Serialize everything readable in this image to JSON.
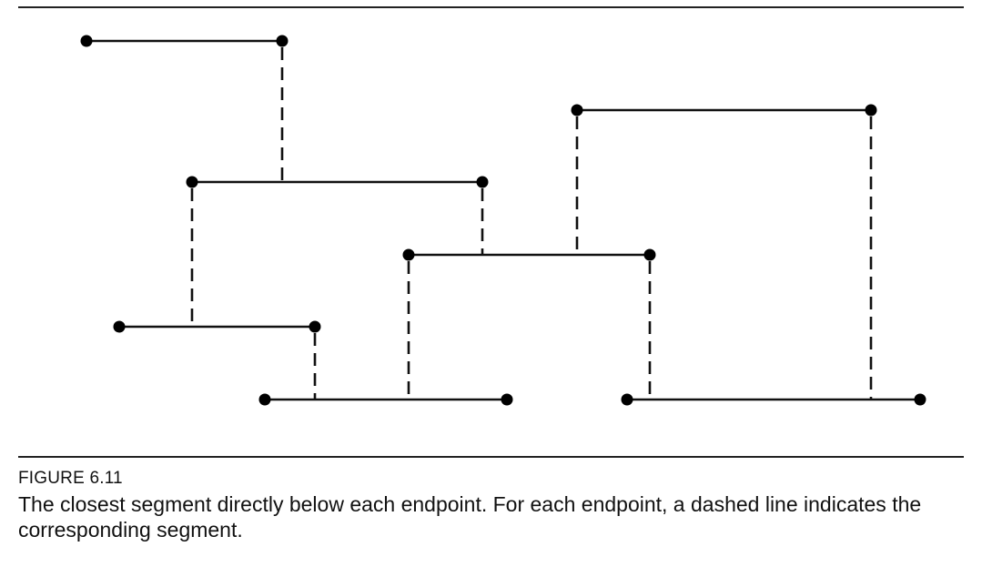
{
  "figure": {
    "label": "FIGURE 6.11",
    "caption": "The closest segment directly below each endpoint. For each endpoint, a dashed line indicates the corresponding segment."
  },
  "diagram": {
    "segments": [
      {
        "id": "s1"
      },
      {
        "id": "s2"
      },
      {
        "id": "s3"
      },
      {
        "id": "s4"
      },
      {
        "id": "s5"
      },
      {
        "id": "s6"
      },
      {
        "id": "s7"
      }
    ],
    "links": [
      {
        "from": "s1.right",
        "to": "s2"
      },
      {
        "from": "s2.left",
        "to": "s4"
      },
      {
        "from": "s2.right",
        "to": "s3"
      },
      {
        "from": "s3.left",
        "to": "s6"
      },
      {
        "from": "s3.right",
        "to": "s7"
      },
      {
        "from": "s4.right",
        "to": "s6"
      },
      {
        "from": "s5.left",
        "to": "s3"
      },
      {
        "from": "s5.right",
        "to": "s7"
      }
    ]
  }
}
